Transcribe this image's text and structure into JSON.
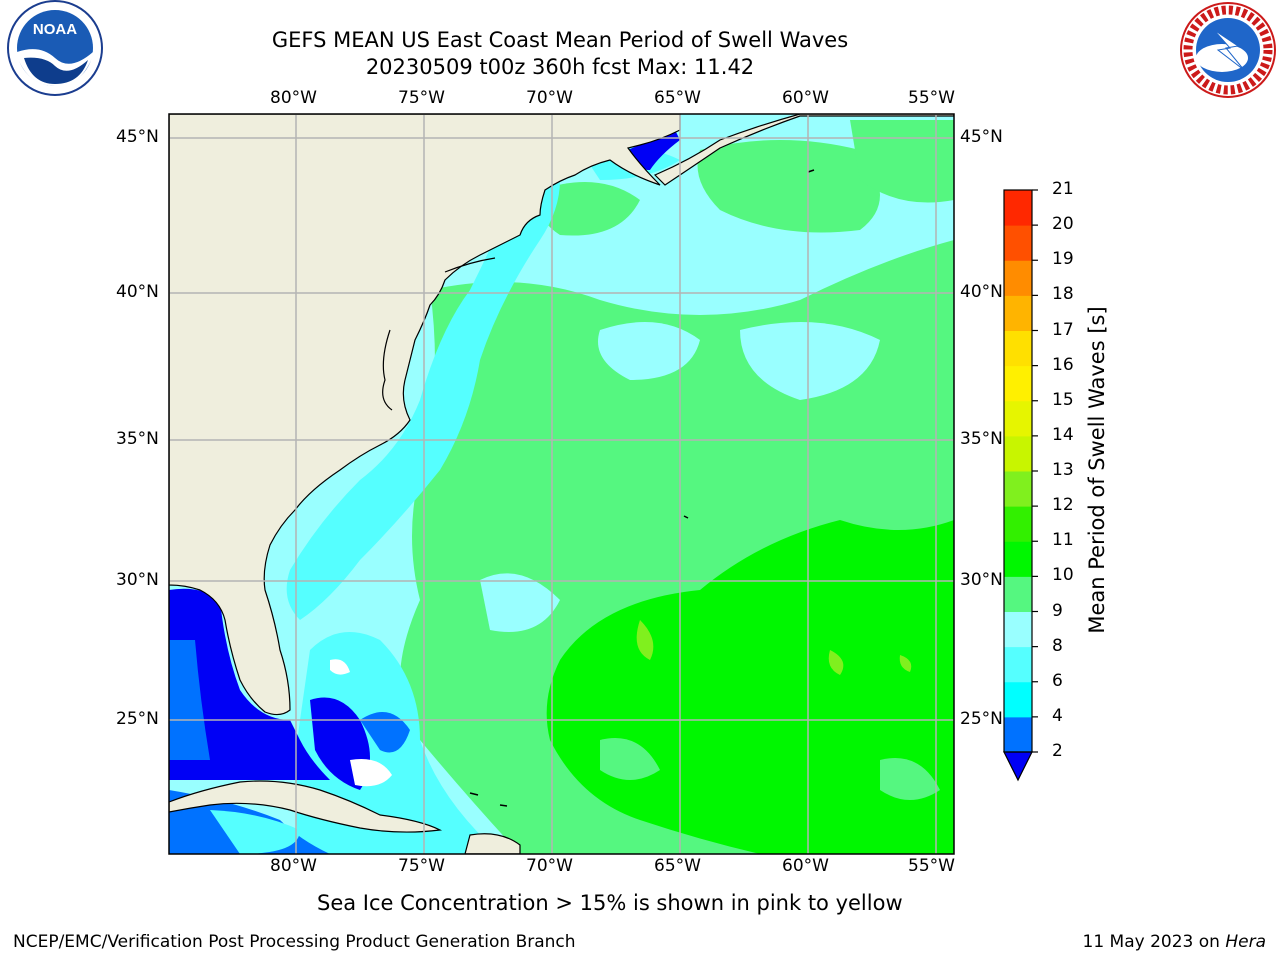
{
  "header": {
    "title_line1": "GEFS MEAN US East Coast Mean Period of Swell Waves",
    "title_line2": "20230509 t00z 360h fcst   Max: 11.42"
  },
  "logos": {
    "left": {
      "name": "noaa-logo",
      "text": "NOAA"
    },
    "right": {
      "name": "nws-logo",
      "ring_text": "NATIONAL WEATHER SERVICE"
    }
  },
  "map": {
    "lon_labels": [
      "80°W",
      "75°W",
      "70°W",
      "65°W",
      "60°W",
      "55°W"
    ],
    "lat_labels": [
      "45°N",
      "40°N",
      "35°N",
      "30°N",
      "25°N"
    ],
    "colors": {
      "land": "#efeedd",
      "deep_blue": "#0000f5",
      "blue": "#0072ff",
      "cyan": "#00ffff",
      "light_cyan": "#55ffff",
      "pale_cyan": "#99ffff",
      "light_green": "#55f780",
      "green": "#00f700",
      "yellow_green": "#80f01e",
      "grid": "#b4b4b4"
    }
  },
  "colorbar": {
    "title": "Mean Period of Swell Waves [s]",
    "ticks": [
      "2",
      "4",
      "6",
      "8",
      "9",
      "10",
      "11",
      "12",
      "13",
      "14",
      "15",
      "16",
      "17",
      "18",
      "19",
      "20",
      "21"
    ],
    "colors": [
      "#0072ff",
      "#00ffff",
      "#55ffff",
      "#99ffff",
      "#55f780",
      "#00f700",
      "#32f000",
      "#80f01e",
      "#c8f500",
      "#e6f500",
      "#fff000",
      "#ffe000",
      "#ffb400",
      "#ff8c00",
      "#ff5000",
      "#ff2800"
    ],
    "under_color": "#0000f5"
  },
  "caption": "Sea Ice Concentration > 15% is shown in pink to yellow",
  "footer": {
    "left": "NCEP/EMC/Verification Post Processing Product Generation Branch",
    "right_prefix": "11 May 2023 on ",
    "right_host": "Hera"
  }
}
